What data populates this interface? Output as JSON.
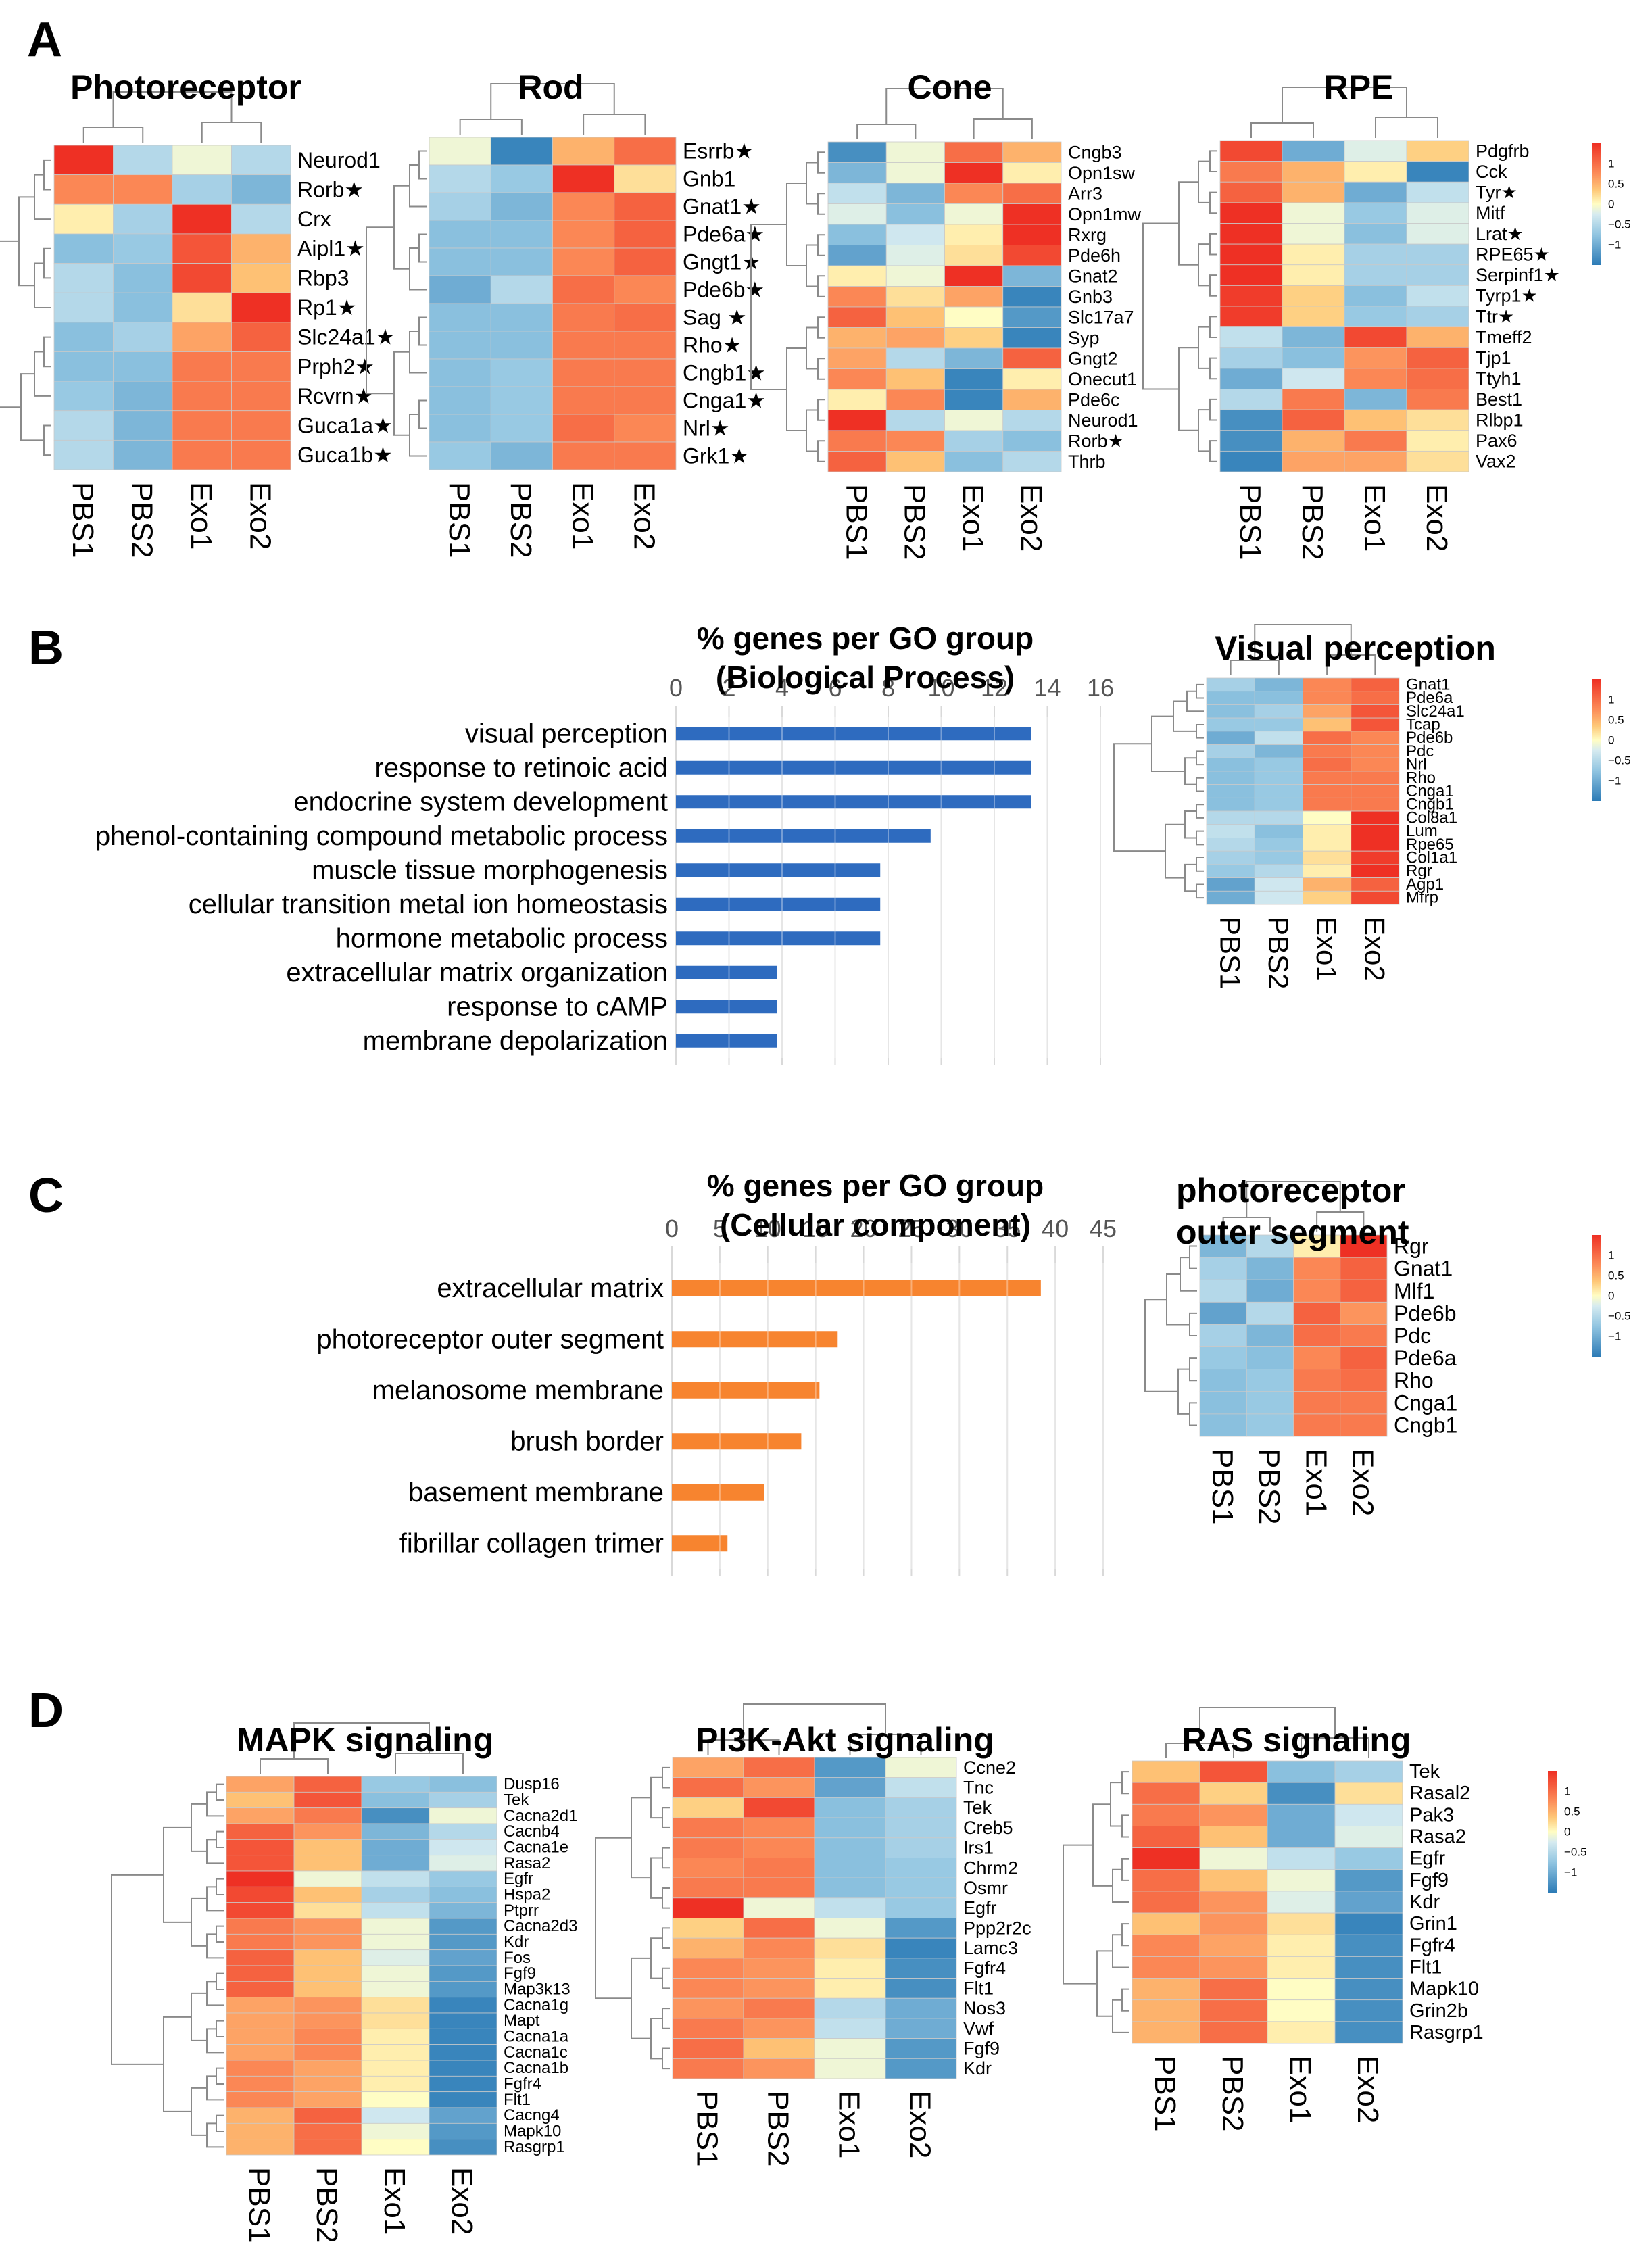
{
  "panels": {
    "A": "A",
    "B": "B",
    "C": "C",
    "D": "D"
  },
  "samples": [
    "PBS1",
    "PBS2",
    "Exo1",
    "Exo2"
  ],
  "colorscale": {
    "low": "#2c7bb6",
    "mid_low": "#abd9e9",
    "mid": "#ffffbf",
    "mid_high": "#fdae61",
    "high": "#d7191c",
    "ticks": [
      "1",
      "0.5",
      "0",
      "−0.5",
      "−1"
    ]
  },
  "chart_data": [
    {
      "id": "photoreceptor",
      "type": "heatmap",
      "title": "Photoreceptor",
      "columns": [
        "PBS1",
        "PBS2",
        "Exo1",
        "Exo2"
      ],
      "rows": [
        "Neurod1",
        "Rorb★",
        "Crx",
        "Aipl1★",
        "Rbp3",
        "Rp1★",
        "Slc24a1★",
        "Prph2★",
        "Rcvrn★",
        "Guca1a★",
        "Guca1b★"
      ],
      "values": [
        [
          1.5,
          -0.5,
          -0.1,
          -0.5
        ],
        [
          0.8,
          0.8,
          -0.6,
          -0.9
        ],
        [
          0.1,
          -0.6,
          1.5,
          -0.5
        ],
        [
          -0.8,
          -0.7,
          1.2,
          0.5
        ],
        [
          -0.5,
          -0.8,
          1.3,
          0.4
        ],
        [
          -0.5,
          -0.8,
          0.2,
          1.5
        ],
        [
          -0.8,
          -0.6,
          0.6,
          1.1
        ],
        [
          -0.8,
          -0.8,
          0.9,
          0.9
        ],
        [
          -0.7,
          -0.9,
          0.9,
          0.9
        ],
        [
          -0.5,
          -0.9,
          0.9,
          0.9
        ],
        [
          -0.5,
          -0.9,
          0.9,
          0.9
        ]
      ],
      "legend": false
    },
    {
      "id": "rod",
      "type": "heatmap",
      "title": "Rod",
      "columns": [
        "PBS1",
        "PBS2",
        "Exo1",
        "Exo2"
      ],
      "rows": [
        "Esrrb★",
        "Gnb1",
        "Gnat1★",
        "Pde6a★",
        "Gngt1★",
        "Pde6b★",
        "Sag ★",
        "Rho★",
        "Cngb1★",
        "Cnga1★",
        "Nrl★",
        "Grk1★"
      ],
      "values": [
        [
          -0.1,
          -1.4,
          0.5,
          1.0
        ],
        [
          -0.5,
          -0.7,
          1.5,
          0.2
        ],
        [
          -0.6,
          -0.9,
          0.8,
          1.1
        ],
        [
          -0.8,
          -0.8,
          0.8,
          1.1
        ],
        [
          -0.8,
          -0.8,
          0.8,
          1.1
        ],
        [
          -1.0,
          -0.5,
          1.0,
          0.8
        ],
        [
          -0.8,
          -0.8,
          0.9,
          1.0
        ],
        [
          -0.8,
          -0.8,
          0.9,
          0.9
        ],
        [
          -0.8,
          -0.7,
          0.9,
          0.9
        ],
        [
          -0.8,
          -0.7,
          0.9,
          0.9
        ],
        [
          -0.8,
          -0.7,
          1.0,
          0.8
        ],
        [
          -0.7,
          -0.9,
          0.9,
          0.9
        ]
      ],
      "legend": false
    },
    {
      "id": "cone",
      "type": "heatmap",
      "title": "Cone",
      "columns": [
        "PBS1",
        "PBS2",
        "Exo1",
        "Exo2"
      ],
      "rows": [
        "Cngb3",
        "Opn1sw",
        "Arr3",
        "Opn1mw",
        "Rxrg",
        "Pde6h",
        "Gnat2",
        "Gnb3",
        "Slc17a7",
        "Syp",
        "Gngt2",
        "Onecut1",
        "Pde6c",
        "Neurod1",
        "Rorb★",
        "Thrb"
      ],
      "values": [
        [
          -1.3,
          -0.1,
          1.0,
          0.5
        ],
        [
          -0.9,
          -0.1,
          1.5,
          0.1
        ],
        [
          -0.4,
          -0.9,
          0.8,
          1.0
        ],
        [
          -0.2,
          -0.8,
          -0.1,
          1.5
        ],
        [
          -0.8,
          -0.3,
          0.1,
          1.5
        ],
        [
          -1.1,
          -0.2,
          0.2,
          1.3
        ],
        [
          0.1,
          -0.1,
          1.5,
          -0.9
        ],
        [
          0.8,
          0.2,
          0.6,
          -1.4
        ],
        [
          1.1,
          0.4,
          0.0,
          -1.2
        ],
        [
          0.5,
          0.6,
          0.3,
          -1.4
        ],
        [
          0.6,
          -0.5,
          -0.9,
          1.1
        ],
        [
          0.8,
          0.4,
          -1.4,
          0.1
        ],
        [
          0.1,
          0.8,
          -1.4,
          0.5
        ],
        [
          1.5,
          -0.5,
          -0.1,
          -0.5
        ],
        [
          0.9,
          0.8,
          -0.6,
          -0.8
        ],
        [
          1.1,
          0.4,
          -0.8,
          -0.5
        ]
      ],
      "legend": false
    },
    {
      "id": "rpe",
      "type": "heatmap",
      "title": "RPE",
      "columns": [
        "PBS1",
        "PBS2",
        "Exo1",
        "Exo2"
      ],
      "rows": [
        "Pdgfrb",
        "Cck",
        "Tyr★",
        "Mitf",
        "Lrat★",
        "RPE65★",
        "Serpinf1★",
        "Tyrp1★",
        "Ttr★",
        "Tmeff2",
        "Tjp1",
        "Ttyh1",
        "Best1",
        "Rlbp1",
        "Pax6",
        "Vax2"
      ],
      "values": [
        [
          1.3,
          -1.0,
          -0.2,
          0.3
        ],
        [
          0.9,
          0.5,
          0.1,
          -1.4
        ],
        [
          1.1,
          0.5,
          -1.0,
          -0.4
        ],
        [
          1.5,
          -0.1,
          -0.7,
          -0.2
        ],
        [
          1.5,
          -0.1,
          -0.8,
          -0.2
        ],
        [
          1.5,
          0.1,
          -0.6,
          -0.6
        ],
        [
          1.5,
          0.1,
          -0.6,
          -0.6
        ],
        [
          1.4,
          0.3,
          -0.8,
          -0.4
        ],
        [
          1.4,
          0.3,
          -0.7,
          -0.6
        ],
        [
          -0.4,
          -0.9,
          1.3,
          0.5
        ],
        [
          -0.6,
          -0.8,
          0.7,
          1.1
        ],
        [
          -1.0,
          -0.3,
          0.8,
          1.0
        ],
        [
          -0.5,
          0.9,
          -0.9,
          0.9
        ],
        [
          -1.3,
          1.1,
          0.4,
          0.2
        ],
        [
          -1.3,
          0.5,
          0.9,
          0.1
        ],
        [
          -1.4,
          0.6,
          0.6,
          0.2
        ]
      ],
      "legend": true
    },
    {
      "id": "bp",
      "type": "bar",
      "orientation": "horizontal",
      "title": "% genes per GO group",
      "subtitle": "(Biological Process)",
      "categories": [
        "visual perception",
        "response to retinoic acid",
        "endocrine system development",
        "phenol-containing compound metabolic process",
        "muscle tissue morphogenesis",
        "cellular transition metal ion homeostasis",
        "hormone metabolic process",
        "extracellular matrix organization",
        "response to cAMP",
        "membrane depolarization"
      ],
      "values": [
        13.4,
        13.4,
        13.4,
        9.6,
        7.7,
        7.7,
        7.7,
        3.8,
        3.8,
        3.8
      ],
      "xlim": [
        0,
        16
      ],
      "ticks": [
        "0",
        "2",
        "4",
        "6",
        "8",
        "10",
        "12",
        "14",
        "16"
      ],
      "color": "#2e6bbf",
      "grid": true
    },
    {
      "id": "visual",
      "type": "heatmap",
      "title": "Visual perception",
      "columns": [
        "PBS1",
        "PBS2",
        "Exo1",
        "Exo2"
      ],
      "rows": [
        "Gnat1",
        "Pde6a",
        "Slc24a1",
        "Tcap",
        "Pde6b",
        "Pdc",
        "Nrl",
        "Rho",
        "Cnga1",
        "Cngb1",
        "Col8a1",
        "Lum",
        "Rpe65",
        "Col1a1",
        "Rgr",
        "Agp1",
        "Mfrp"
      ],
      "values": [
        [
          -0.6,
          -0.9,
          0.8,
          1.1
        ],
        [
          -0.8,
          -0.8,
          0.8,
          1.0
        ],
        [
          -0.8,
          -0.6,
          0.6,
          1.2
        ],
        [
          -0.7,
          -0.7,
          0.4,
          1.2
        ],
        [
          -1.0,
          -0.4,
          1.0,
          0.8
        ],
        [
          -0.6,
          -0.9,
          0.9,
          0.8
        ],
        [
          -0.8,
          -0.7,
          1.0,
          0.8
        ],
        [
          -0.8,
          -0.7,
          0.9,
          0.9
        ],
        [
          -0.8,
          -0.7,
          0.9,
          0.9
        ],
        [
          -0.8,
          -0.7,
          0.9,
          0.9
        ],
        [
          -0.5,
          -0.5,
          0.0,
          1.5
        ],
        [
          -0.4,
          -0.8,
          0.1,
          1.5
        ],
        [
          -0.5,
          -0.7,
          0.1,
          1.5
        ],
        [
          -0.6,
          -0.7,
          0.2,
          1.4
        ],
        [
          -0.7,
          -0.5,
          0.1,
          1.5
        ],
        [
          -1.1,
          -0.3,
          0.5,
          1.1
        ],
        [
          -1.0,
          -0.3,
          0.3,
          1.3
        ]
      ],
      "legend": true
    },
    {
      "id": "cc",
      "type": "bar",
      "orientation": "horizontal",
      "title": "% genes per GO group",
      "subtitle": "(Cellular component)",
      "categories": [
        "extracellular matrix",
        "photoreceptor outer segment",
        "melanosome membrane",
        "brush border",
        "basement membrane",
        "fibrillar collagen trimer"
      ],
      "values": [
        38.5,
        17.3,
        15.4,
        13.5,
        9.6,
        5.8
      ],
      "xlim": [
        0,
        45
      ],
      "ticks": [
        "0",
        "5",
        "10",
        "15",
        "20",
        "25",
        "30",
        "35",
        "40",
        "45"
      ],
      "color": "#f7842f",
      "grid": true
    },
    {
      "id": "pos",
      "type": "heatmap",
      "title_lines": [
        "photoreceptor",
        "outer segment"
      ],
      "columns": [
        "PBS1",
        "PBS2",
        "Exo1",
        "Exo2"
      ],
      "rows": [
        "Rgr",
        "Gnat1",
        "Mlf1",
        "Pde6b",
        "Pdc",
        "Pde6a",
        "Rho",
        "Cnga1",
        "Cngb1"
      ],
      "values": [
        [
          -0.9,
          -0.5,
          0.1,
          1.5
        ],
        [
          -0.6,
          -0.9,
          0.8,
          1.1
        ],
        [
          -0.5,
          -1.0,
          0.8,
          1.1
        ],
        [
          -1.1,
          -0.5,
          1.1,
          0.7
        ],
        [
          -0.6,
          -0.9,
          1.0,
          0.9
        ],
        [
          -0.7,
          -0.8,
          0.8,
          1.1
        ],
        [
          -0.8,
          -0.7,
          0.9,
          1.0
        ],
        [
          -0.8,
          -0.7,
          0.9,
          0.9
        ],
        [
          -0.8,
          -0.7,
          0.9,
          0.9
        ]
      ],
      "legend": true
    },
    {
      "id": "mapk",
      "type": "heatmap",
      "title": "MAPK signaling",
      "columns": [
        "PBS1",
        "PBS2",
        "Exo1",
        "Exo2"
      ],
      "rows": [
        "Dusp16",
        "Tek",
        "Cacna2d1",
        "Cacnb4",
        "Cacna1e",
        "Rasa2",
        "Egfr",
        "Hspa2",
        "Ptprr",
        "Cacna2d3",
        "Kdr",
        "Fos",
        "Fgf9",
        "Map3k13",
        "Cacna1g",
        "Mapt",
        "Cacna1a",
        "Cacna1c",
        "Cacna1b",
        "Fgfr4",
        "Flt1",
        "Cacng4",
        "Mapk10",
        "Rasgrp1"
      ],
      "values": [
        [
          0.6,
          1.1,
          -0.7,
          -0.8
        ],
        [
          0.4,
          1.2,
          -0.8,
          -0.6
        ],
        [
          0.6,
          0.9,
          -1.3,
          -0.1
        ],
        [
          1.1,
          0.7,
          -0.9,
          -0.5
        ],
        [
          1.2,
          0.4,
          -1.0,
          -0.3
        ],
        [
          1.2,
          0.4,
          -1.0,
          -0.2
        ],
        [
          1.5,
          -0.1,
          -0.4,
          -0.7
        ],
        [
          1.3,
          0.4,
          -0.6,
          -0.8
        ],
        [
          1.3,
          0.2,
          -0.4,
          -0.9
        ],
        [
          0.9,
          0.7,
          -0.1,
          -1.2
        ],
        [
          0.9,
          0.7,
          -0.1,
          -1.2
        ],
        [
          1.1,
          0.4,
          -0.2,
          -1.1
        ],
        [
          1.1,
          0.4,
          -0.1,
          -1.2
        ],
        [
          1.1,
          0.4,
          -0.1,
          -1.2
        ],
        [
          0.6,
          0.7,
          0.2,
          -1.4
        ],
        [
          0.6,
          0.7,
          0.2,
          -1.4
        ],
        [
          0.6,
          0.8,
          0.1,
          -1.4
        ],
        [
          0.6,
          0.8,
          0.1,
          -1.4
        ],
        [
          0.8,
          0.6,
          0.1,
          -1.4
        ],
        [
          0.8,
          0.6,
          0.1,
          -1.4
        ],
        [
          0.8,
          0.6,
          0.0,
          -1.4
        ],
        [
          0.5,
          1.1,
          -0.3,
          -1.1
        ],
        [
          0.5,
          1.0,
          -0.1,
          -1.2
        ],
        [
          0.5,
          1.0,
          0.0,
          -1.3
        ]
      ],
      "legend": false
    },
    {
      "id": "pi3k",
      "type": "heatmap",
      "title": "PI3K-Akt signaling",
      "columns": [
        "PBS1",
        "PBS2",
        "Exo1",
        "Exo2"
      ],
      "rows": [
        "Ccne2",
        "Tnc",
        "Tek",
        "Creb5",
        "Irs1",
        "Chrm2",
        "Osmr",
        "Egfr",
        "Ppp2r2c",
        "Lamc3",
        "Fgfr4",
        "Flt1",
        "Nos3",
        "Vwf",
        "Fgf9",
        "Kdr"
      ],
      "values": [
        [
          0.6,
          1.0,
          -1.2,
          -0.1
        ],
        [
          1.0,
          0.7,
          -1.1,
          -0.4
        ],
        [
          0.3,
          1.3,
          -0.8,
          -0.6
        ],
        [
          0.9,
          0.8,
          -0.8,
          -0.6
        ],
        [
          0.9,
          0.8,
          -0.8,
          -0.6
        ],
        [
          0.8,
          0.9,
          -0.8,
          -0.7
        ],
        [
          0.9,
          0.9,
          -0.8,
          -0.7
        ],
        [
          1.5,
          -0.1,
          -0.4,
          -0.7
        ],
        [
          0.3,
          1.0,
          -0.1,
          -1.2
        ],
        [
          0.5,
          0.8,
          0.2,
          -1.4
        ],
        [
          0.8,
          0.7,
          0.1,
          -1.3
        ],
        [
          0.8,
          0.7,
          0.1,
          -1.3
        ],
        [
          0.7,
          0.9,
          -0.5,
          -1.0
        ],
        [
          0.9,
          0.7,
          -0.4,
          -1.0
        ],
        [
          1.0,
          0.4,
          -0.1,
          -1.2
        ],
        [
          0.9,
          0.7,
          -0.1,
          -1.2
        ]
      ],
      "legend": false
    },
    {
      "id": "ras",
      "type": "heatmap",
      "title": "RAS signaling",
      "columns": [
        "PBS1",
        "PBS2",
        "Exo1",
        "Exo2"
      ],
      "rows": [
        "Tek",
        "Rasal2",
        "Pak3",
        "Rasa2",
        "Egfr",
        "Fgf9",
        "Kdr",
        "Grin1",
        "Fgfr4",
        "Flt1",
        "Mapk10",
        "Grin2b",
        "Rasgrp1"
      ],
      "values": [
        [
          0.4,
          1.2,
          -0.8,
          -0.6
        ],
        [
          1.0,
          0.3,
          -1.3,
          0.2
        ],
        [
          0.9,
          0.7,
          -1.0,
          -0.3
        ],
        [
          1.1,
          0.4,
          -1.0,
          -0.2
        ],
        [
          1.5,
          -0.1,
          -0.4,
          -0.7
        ],
        [
          1.0,
          0.4,
          -0.1,
          -1.2
        ],
        [
          1.0,
          0.7,
          -0.2,
          -1.1
        ],
        [
          0.4,
          0.7,
          0.2,
          -1.4
        ],
        [
          0.8,
          0.6,
          0.1,
          -1.3
        ],
        [
          0.8,
          0.7,
          0.1,
          -1.3
        ],
        [
          0.5,
          1.0,
          0.0,
          -1.3
        ],
        [
          0.5,
          1.0,
          0.0,
          -1.3
        ],
        [
          0.5,
          1.0,
          0.1,
          -1.3
        ]
      ],
      "legend": true
    }
  ]
}
